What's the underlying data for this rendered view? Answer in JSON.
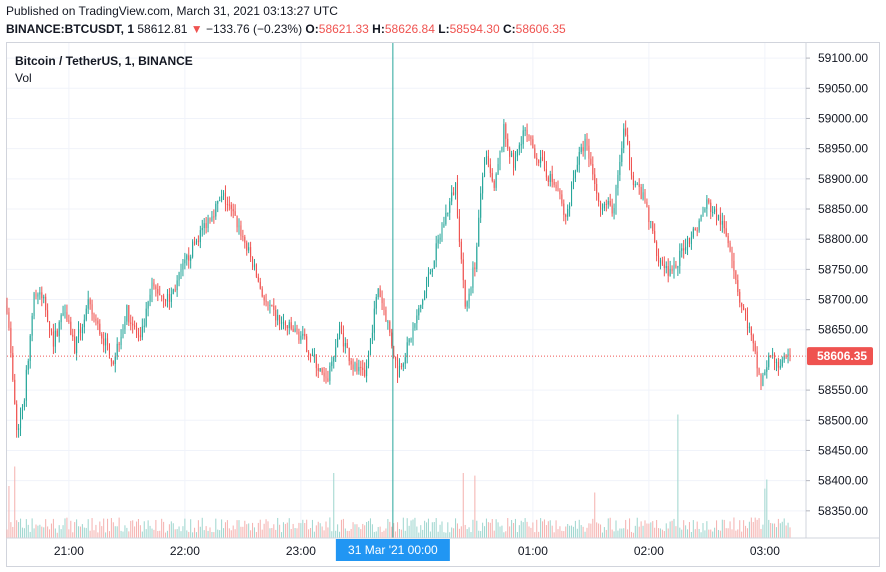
{
  "header": {
    "published": "Published on TradingView.com, March 31, 2021 03:13:27 UTC",
    "symbol": "BINANCE:BTCUSDT, 1",
    "last": "58612.81",
    "down_arrow": "▼",
    "change": "−133.76 (−0.23%)",
    "o_label": "O:",
    "o_value": "58621.33",
    "h_label": "H:",
    "h_value": "58626.84",
    "l_label": "L:",
    "l_value": "58594.30",
    "c_label": "C:",
    "c_value": "58606.35"
  },
  "legend": {
    "title": "Bitcoin / TetherUS, 1, BINANCE",
    "volume": "Vol"
  },
  "price_axis": {
    "ticks": [
      "59100.00",
      "59050.00",
      "59000.00",
      "58950.00",
      "58900.00",
      "58850.00",
      "58800.00",
      "58750.00",
      "58700.00",
      "58650.00",
      "58550.00",
      "58500.00",
      "58450.00",
      "58400.00",
      "58350.00"
    ],
    "last_price_label": "58606.35"
  },
  "time_axis": {
    "ticks": [
      "21:00",
      "22:00",
      "23:00",
      "01:00",
      "02:00",
      "03:00"
    ],
    "crosshair_label": "31 Mar '21   00:00"
  },
  "colors": {
    "up": "#26a69a",
    "down": "#ef5350",
    "up_vol": "#a3d8d1",
    "down_vol": "#f5b5b3",
    "crosshair": "#26a69a",
    "badge": "#2196f3",
    "grid": "#f0f3fa"
  },
  "chart_data": {
    "type": "candlestick",
    "interval": "1 minute",
    "x_range": [
      "20:28",
      "03:13"
    ],
    "y_range": [
      58305,
      59125
    ],
    "last_price": 58606.35,
    "series": [
      {
        "name": "Price",
        "anchors": [
          {
            "t": "20:28",
            "v": 58690
          },
          {
            "t": "20:33",
            "v": 58480
          },
          {
            "t": "20:37",
            "v": 58540
          },
          {
            "t": "20:42",
            "v": 58710
          },
          {
            "t": "20:47",
            "v": 58700
          },
          {
            "t": "20:52",
            "v": 58630
          },
          {
            "t": "20:58",
            "v": 58690
          },
          {
            "t": "21:03",
            "v": 58620
          },
          {
            "t": "21:10",
            "v": 58690
          },
          {
            "t": "21:17",
            "v": 58640
          },
          {
            "t": "21:23",
            "v": 58600
          },
          {
            "t": "21:30",
            "v": 58680
          },
          {
            "t": "21:37",
            "v": 58630
          },
          {
            "t": "21:43",
            "v": 58720
          },
          {
            "t": "21:52",
            "v": 58700
          },
          {
            "t": "22:03",
            "v": 58780
          },
          {
            "t": "22:13",
            "v": 58840
          },
          {
            "t": "22:20",
            "v": 58870
          },
          {
            "t": "22:28",
            "v": 58820
          },
          {
            "t": "22:35",
            "v": 58760
          },
          {
            "t": "22:42",
            "v": 58690
          },
          {
            "t": "22:50",
            "v": 58660
          },
          {
            "t": "23:00",
            "v": 58640
          },
          {
            "t": "23:07",
            "v": 58600
          },
          {
            "t": "23:13",
            "v": 58560
          },
          {
            "t": "23:20",
            "v": 58650
          },
          {
            "t": "23:27",
            "v": 58590
          },
          {
            "t": "23:33",
            "v": 58570
          },
          {
            "t": "23:40",
            "v": 58720
          },
          {
            "t": "23:45",
            "v": 58660
          },
          {
            "t": "23:50",
            "v": 58580
          },
          {
            "t": "23:55",
            "v": 58620
          },
          {
            "t": "00:02",
            "v": 58690
          },
          {
            "t": "00:08",
            "v": 58760
          },
          {
            "t": "00:15",
            "v": 58840
          },
          {
            "t": "00:20",
            "v": 58890
          },
          {
            "t": "00:25",
            "v": 58680
          },
          {
            "t": "00:30",
            "v": 58760
          },
          {
            "t": "00:35",
            "v": 58940
          },
          {
            "t": "00:40",
            "v": 58880
          },
          {
            "t": "00:45",
            "v": 58980
          },
          {
            "t": "00:50",
            "v": 58920
          },
          {
            "t": "00:55",
            "v": 58980
          },
          {
            "t": "01:00",
            "v": 58950
          },
          {
            "t": "01:07",
            "v": 58910
          },
          {
            "t": "01:13",
            "v": 58880
          },
          {
            "t": "01:17",
            "v": 58830
          },
          {
            "t": "01:22",
            "v": 58920
          },
          {
            "t": "01:27",
            "v": 58960
          },
          {
            "t": "01:35",
            "v": 58860
          },
          {
            "t": "01:42",
            "v": 58850
          },
          {
            "t": "01:47",
            "v": 58980
          },
          {
            "t": "01:52",
            "v": 58900
          },
          {
            "t": "01:58",
            "v": 58860
          },
          {
            "t": "02:05",
            "v": 58770
          },
          {
            "t": "02:12",
            "v": 58740
          },
          {
            "t": "02:18",
            "v": 58790
          },
          {
            "t": "02:25",
            "v": 58820
          },
          {
            "t": "02:30",
            "v": 58860
          },
          {
            "t": "02:37",
            "v": 58830
          },
          {
            "t": "02:42",
            "v": 58790
          },
          {
            "t": "02:47",
            "v": 58700
          },
          {
            "t": "02:52",
            "v": 58650
          },
          {
            "t": "02:58",
            "v": 58560
          },
          {
            "t": "03:03",
            "v": 58610
          },
          {
            "t": "03:08",
            "v": 58590
          },
          {
            "t": "03:13",
            "v": 58606
          }
        ]
      },
      {
        "name": "Vol",
        "spikes": [
          {
            "t": "20:29",
            "rel": 0.4
          },
          {
            "t": "20:32",
            "rel": 0.55
          },
          {
            "t": "23:17",
            "rel": 0.5
          },
          {
            "t": "00:24",
            "rel": 0.5
          },
          {
            "t": "00:30",
            "rel": 0.48
          },
          {
            "t": "01:32",
            "rel": 0.35
          },
          {
            "t": "02:15",
            "rel": 0.95
          },
          {
            "t": "03:00",
            "rel": 0.38
          },
          {
            "t": "03:01",
            "rel": 0.45
          }
        ]
      }
    ]
  }
}
